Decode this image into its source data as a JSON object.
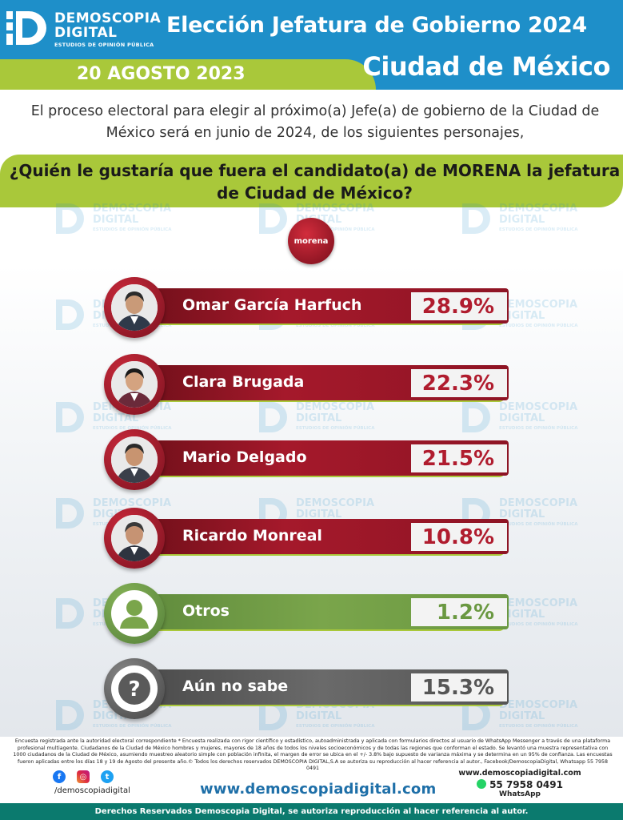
{
  "brand": {
    "name_line1": "DEMOSCOPIA",
    "name_line2": "DIGITAL",
    "tagline": "ESTUDIOS DE OPINIÓN PÚBLICA",
    "blue": "#1e8fc9",
    "lime": "#a9c83a",
    "red": "#a5192b"
  },
  "header": {
    "title": "Elección Jefatura de Gobierno 2024",
    "subtitle": "Ciudad de México",
    "date": "20 AGOSTO 2023"
  },
  "intro": "El proceso electoral para elegir al próximo(a) Jefe(a) de gobierno de la Ciudad de México será en junio de 2024, de los siguientes personajes,",
  "question": "¿Quién le gustaría que fuera el candidato(a) de MORENA la jefatura de Ciudad de México?",
  "party_badge": "morena",
  "chart_data": {
    "type": "bar",
    "orientation": "horizontal",
    "categories": [
      "Omar García Harfuch",
      "Clara Brugada",
      "Mario Delgado",
      "Ricardo Monreal",
      "Otros",
      "Aún no sabe"
    ],
    "values": [
      28.9,
      22.3,
      21.5,
      10.8,
      1.2,
      15.3
    ],
    "value_labels": [
      "28.9%",
      "22.3%",
      "21.5%",
      "10.8%",
      "1.2%",
      "15.3%"
    ],
    "colors": [
      "#a5192b",
      "#a5192b",
      "#a5192b",
      "#a5192b",
      "#7aa54b",
      "#5a5a5a"
    ],
    "icons": [
      "person-photo-icon",
      "person-photo-icon",
      "person-photo-icon",
      "person-photo-icon",
      "person-icon",
      "question-icon"
    ],
    "title": "",
    "xlabel": "",
    "ylabel": ""
  },
  "footer": {
    "note": "Encuesta registrada ante la autoridad electoral correspondiente * Encuesta realizada con rigor científico y estadístico, autoadministrada y aplicada con formularios directos al usuario de WhatsApp Messenger a través de una plataforma profesional multiagente. Ciudadanos de la Ciudad de México hombres y mujeres, mayores de 18 años de todos los niveles socioeconómicos y de todas las regiones que conforman el estado. Se levantó una muestra representativa con 1000 ciudadanos de la Ciudad de México, asumiendo muestreo aleatorio simple con población infinita, el margen de error se ubica en el +/- 3.8% bajo supuesto de varianza máxima y se determina en un 95% de confianza. Las encuestas fueron aplicadas entre los días 18 y 19 de Agosto del presente año.© Todos los derechos reservados DEMOSCOPIA DIGITAL,S.A se autoriza su reproducción al hacer referencia al autor., Facebook/DemoscopiaDigital, Whatsapp 55 7958 0491",
    "social_handle": "/demoscopiadigital",
    "website": "www.demoscopiadigital.com",
    "contact_site": "www.demoscopiadigital.com",
    "phone": "55 7958 0491",
    "whatsapp_label": "WhatsApp",
    "rights": "Derechos Reservados Demoscopia Digital, se autoriza reproducción al hacer referencia al autor."
  }
}
